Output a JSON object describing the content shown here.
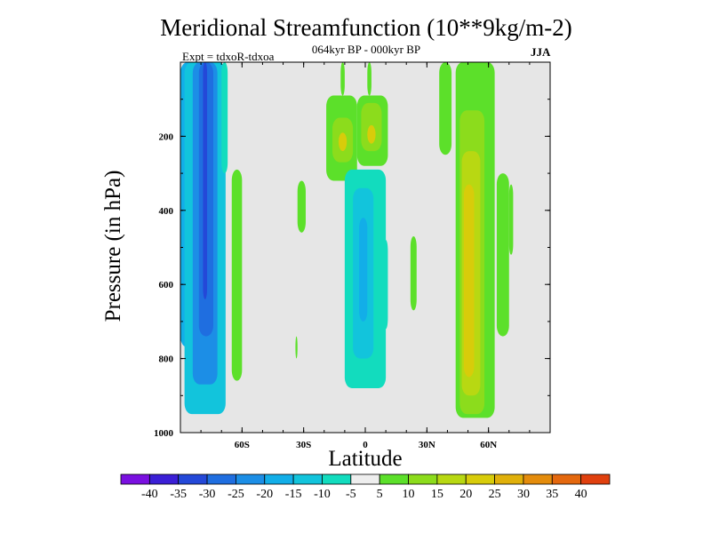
{
  "chart_data": {
    "type": "heatmap",
    "title": "Meridional Streamfunction (10**9kg/m-2)",
    "subtitle": "064kyr BP - 000kyr BP",
    "annotation_left": "Expt = tdxoR-tdxoa",
    "annotation_right": "JJA",
    "xlabel": "Latitude",
    "ylabel": "Pressure (in hPa)",
    "x_ticks": [
      "60S",
      "30S",
      "0",
      "30N",
      "60N"
    ],
    "x_tick_values": [
      -60,
      -30,
      0,
      30,
      60
    ],
    "xlim": [
      -90,
      90
    ],
    "y_ticks": [
      "200",
      "400",
      "600",
      "800",
      "1000"
    ],
    "y_tick_values": [
      200,
      400,
      600,
      800,
      1000
    ],
    "ylim": [
      0,
      1000
    ],
    "y_inverted": true,
    "colorbar": {
      "labels": [
        "-40",
        "-35",
        "-30",
        "-25",
        "-20",
        "-15",
        "-10",
        "-5",
        "5",
        "10",
        "15",
        "20",
        "25",
        "30",
        "35",
        "40"
      ],
      "colors": [
        "#7a10e0",
        "#3b1fd6",
        "#2448d8",
        "#1f6ee0",
        "#1c8ee6",
        "#12aee8",
        "#12c4dc",
        "#12dcbe",
        "#eeeeee",
        "#5ce02a",
        "#8cdc1c",
        "#b8d812",
        "#d8cc0a",
        "#e0b00a",
        "#e48c0c",
        "#e4680e",
        "#e0400e"
      ]
    },
    "background_color": "#e6e6e6",
    "cells": [
      {
        "lat": [
          -90,
          -79
        ],
        "p": [
          0,
          770
        ],
        "level": -17.5
      },
      {
        "lat": [
          -88,
          -68
        ],
        "p": [
          0,
          950
        ],
        "level": -12.5
      },
      {
        "lat": [
          -84,
          -72
        ],
        "p": [
          0,
          870
        ],
        "level": -22.5
      },
      {
        "lat": [
          -81,
          -74
        ],
        "p": [
          0,
          740
        ],
        "level": -27.5
      },
      {
        "lat": [
          -79,
          -77
        ],
        "p": [
          0,
          640
        ],
        "level": -32.5
      },
      {
        "lat": [
          -70,
          -67
        ],
        "p": [
          0,
          300
        ],
        "level": -7.5
      },
      {
        "lat": [
          -65,
          -60
        ],
        "p": [
          290,
          860
        ],
        "level": 7.5
      },
      {
        "lat": [
          -33,
          -29
        ],
        "p": [
          320,
          460
        ],
        "level": 7.5
      },
      {
        "lat": [
          -34,
          -33
        ],
        "p": [
          740,
          800
        ],
        "level": 7.5
      },
      {
        "lat": [
          -19,
          -4
        ],
        "p": [
          90,
          320
        ],
        "level": 7.5
      },
      {
        "lat": [
          -16,
          -6
        ],
        "p": [
          150,
          270
        ],
        "level": 12.5
      },
      {
        "lat": [
          -13,
          -9
        ],
        "p": [
          190,
          240
        ],
        "level": 22.5
      },
      {
        "lat": [
          -4,
          11
        ],
        "p": [
          90,
          280
        ],
        "level": 7.5
      },
      {
        "lat": [
          -2,
          8
        ],
        "p": [
          110,
          240
        ],
        "level": 12.5
      },
      {
        "lat": [
          1,
          5
        ],
        "p": [
          170,
          220
        ],
        "level": 22.5
      },
      {
        "lat": [
          -12,
          -10
        ],
        "p": [
          0,
          90
        ],
        "level": 7.5
      },
      {
        "lat": [
          1,
          3
        ],
        "p": [
          0,
          90
        ],
        "level": 7.5
      },
      {
        "lat": [
          -10,
          10
        ],
        "p": [
          290,
          880
        ],
        "level": -7.5
      },
      {
        "lat": [
          -6,
          4
        ],
        "p": [
          340,
          800
        ],
        "level": -12.5
      },
      {
        "lat": [
          -3,
          1
        ],
        "p": [
          420,
          700
        ],
        "level": -17.5
      },
      {
        "lat": [
          9,
          11
        ],
        "p": [
          480,
          720
        ],
        "level": -7.5
      },
      {
        "lat": [
          22,
          25
        ],
        "p": [
          470,
          670
        ],
        "level": 7.5
      },
      {
        "lat": [
          36,
          42
        ],
        "p": [
          0,
          250
        ],
        "level": 7.5
      },
      {
        "lat": [
          44,
          63
        ],
        "p": [
          0,
          960
        ],
        "level": 7.5
      },
      {
        "lat": [
          46,
          58
        ],
        "p": [
          130,
          950
        ],
        "level": 12.5
      },
      {
        "lat": [
          47,
          56
        ],
        "p": [
          240,
          900
        ],
        "level": 17.5
      },
      {
        "lat": [
          48,
          53
        ],
        "p": [
          330,
          850
        ],
        "level": 22.5
      },
      {
        "lat": [
          64,
          70
        ],
        "p": [
          300,
          740
        ],
        "level": 7.5
      },
      {
        "lat": [
          70,
          72
        ],
        "p": [
          330,
          520
        ],
        "level": 7.5
      }
    ]
  }
}
